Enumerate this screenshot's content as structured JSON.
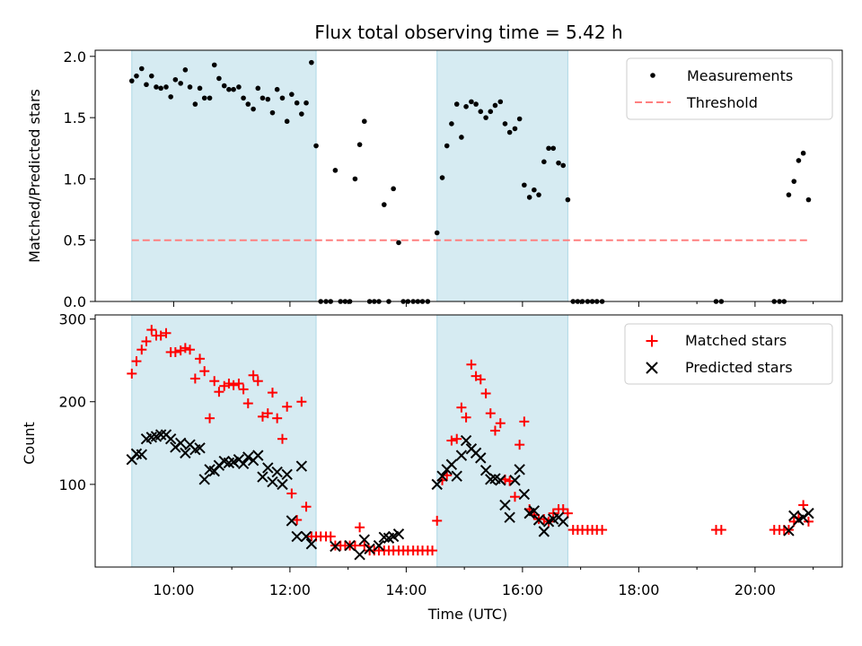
{
  "chart_data": [
    {
      "type": "scatter",
      "title": "Flux total observing time = 5.42 h",
      "xlabel": "",
      "ylabel": "Matched/Predicted stars",
      "ylim": [
        0,
        2.05
      ],
      "yticks": [
        "0.0",
        "0.5",
        "1.0",
        "1.5",
        "2.0"
      ],
      "ytick_values": [
        0,
        0.5,
        1.0,
        1.5,
        2.0
      ],
      "legend": [
        "Measurements",
        "Threshold"
      ],
      "threshold": 0.5,
      "threshold_color": "#ff7f7f",
      "threshold_range": [
        9.28,
        20.95
      ],
      "series": [
        {
          "name": "Measurements",
          "color": "#000000",
          "x": [
            9.28,
            9.36,
            9.45,
            9.53,
            9.62,
            9.7,
            9.78,
            9.87,
            9.95,
            10.03,
            10.12,
            10.2,
            10.28,
            10.37,
            10.45,
            10.53,
            10.62,
            10.7,
            10.78,
            10.87,
            10.95,
            11.03,
            11.12,
            11.2,
            11.28,
            11.37,
            11.45,
            11.53,
            11.62,
            11.7,
            11.78,
            11.87,
            11.95,
            12.03,
            12.12,
            12.2,
            12.28,
            12.37,
            12.45,
            12.53,
            12.62,
            12.7,
            12.78,
            12.87,
            12.95,
            13.03,
            13.12,
            13.2,
            13.28,
            13.37,
            13.45,
            13.53,
            13.62,
            13.7,
            13.78,
            13.87,
            13.95,
            14.03,
            14.12,
            14.2,
            14.28,
            14.37,
            14.53,
            14.62,
            14.7,
            14.78,
            14.87,
            14.95,
            15.03,
            15.12,
            15.2,
            15.28,
            15.37,
            15.45,
            15.53,
            15.62,
            15.7,
            15.78,
            15.87,
            15.95,
            16.03,
            16.12,
            16.2,
            16.28,
            16.37,
            16.45,
            16.53,
            16.62,
            16.7,
            16.78,
            16.87,
            16.95,
            17.03,
            17.12,
            17.2,
            17.28,
            17.37,
            19.33,
            19.42,
            20.33,
            20.42,
            20.5,
            20.58,
            20.67,
            20.75,
            20.83,
            20.92
          ],
          "y": [
            1.8,
            1.84,
            1.9,
            1.77,
            1.84,
            1.75,
            1.74,
            1.75,
            1.67,
            1.81,
            1.78,
            1.89,
            1.75,
            1.61,
            1.74,
            1.66,
            1.66,
            1.93,
            1.82,
            1.76,
            1.73,
            1.73,
            1.75,
            1.66,
            1.61,
            1.57,
            1.74,
            1.66,
            1.65,
            1.54,
            1.73,
            1.66,
            1.47,
            1.69,
            1.62,
            1.53,
            1.62,
            1.95,
            1.27,
            0.0,
            0.0,
            0.0,
            1.07,
            0.0,
            0.0,
            0.0,
            1.0,
            1.28,
            1.47,
            0.0,
            0.0,
            0.0,
            0.79,
            0.0,
            0.92,
            0.48,
            0.0,
            0.0,
            0.0,
            0.0,
            0.0,
            0.0,
            0.56,
            1.01,
            1.27,
            1.45,
            1.61,
            1.34,
            1.59,
            1.63,
            1.61,
            1.55,
            1.5,
            1.55,
            1.6,
            1.63,
            1.45,
            1.38,
            1.41,
            1.49,
            0.95,
            0.85,
            0.91,
            0.87,
            1.14,
            1.25,
            1.25,
            1.13,
            1.11,
            0.83,
            0.0,
            0.0,
            0.0,
            0.0,
            0.0,
            0.0,
            0.0,
            0.0,
            0.0,
            0.0,
            0.0,
            0.0,
            0.87,
            0.98,
            1.15,
            1.21,
            0.83
          ]
        }
      ]
    },
    {
      "type": "scatter",
      "title": "",
      "xlabel": "Time (UTC)",
      "ylabel": "Count",
      "ylim": [
        0,
        305
      ],
      "yticks": [
        "100",
        "200",
        "300"
      ],
      "ytick_values": [
        100,
        200,
        300
      ],
      "xlim": [
        8.65,
        21.5
      ],
      "xticks": [
        "10:00",
        "12:00",
        "14:00",
        "16:00",
        "18:00",
        "20:00"
      ],
      "xtick_values": [
        10,
        12,
        14,
        16,
        18,
        20
      ],
      "minor_xtick_values": [
        11,
        13,
        15,
        17,
        19,
        21
      ],
      "legend": [
        "Matched stars",
        "Predicted stars"
      ],
      "series": [
        {
          "name": "Matched stars",
          "marker": "plus",
          "color": "#ff0000",
          "x": [
            9.28,
            9.36,
            9.45,
            9.53,
            9.62,
            9.7,
            9.78,
            9.87,
            9.95,
            10.03,
            10.12,
            10.2,
            10.28,
            10.37,
            10.45,
            10.53,
            10.62,
            10.7,
            10.78,
            10.87,
            10.95,
            11.03,
            11.12,
            11.2,
            11.28,
            11.37,
            11.45,
            11.53,
            11.62,
            11.7,
            11.78,
            11.87,
            11.95,
            12.03,
            12.12,
            12.2,
            12.28,
            12.37,
            12.45,
            12.53,
            12.62,
            12.7,
            12.78,
            12.87,
            12.95,
            13.03,
            13.12,
            13.2,
            13.28,
            13.37,
            13.45,
            13.53,
            13.62,
            13.7,
            13.78,
            13.87,
            13.95,
            14.03,
            14.12,
            14.2,
            14.28,
            14.37,
            14.45,
            14.53,
            14.62,
            14.7,
            14.78,
            14.87,
            14.95,
            15.03,
            15.12,
            15.2,
            15.28,
            15.37,
            15.45,
            15.53,
            15.62,
            15.7,
            15.78,
            15.87,
            15.95,
            16.03,
            16.12,
            16.2,
            16.28,
            16.37,
            16.45,
            16.53,
            16.62,
            16.7,
            16.78,
            16.87,
            16.95,
            17.03,
            17.12,
            17.2,
            17.28,
            17.37,
            19.33,
            19.42,
            20.33,
            20.42,
            20.5,
            20.58,
            20.67,
            20.75,
            20.83,
            20.92
          ],
          "y": [
            234,
            249,
            263,
            273,
            287,
            280,
            280,
            283,
            260,
            260,
            262,
            265,
            263,
            228,
            252,
            237,
            180,
            225,
            212,
            219,
            222,
            220,
            222,
            215,
            198,
            232,
            225,
            182,
            186,
            211,
            180,
            155,
            194,
            89,
            57,
            200,
            73,
            37,
            37,
            37,
            37,
            37,
            26,
            26,
            26,
            26,
            26,
            48,
            26,
            20,
            20,
            20,
            20,
            20,
            20,
            20,
            20,
            20,
            20,
            20,
            20,
            20,
            20,
            56,
            105,
            111,
            153,
            155,
            193,
            181,
            245,
            231,
            227,
            210,
            186,
            165,
            174,
            106,
            104,
            85,
            148,
            176,
            70,
            63,
            58,
            58,
            55,
            65,
            70,
            70,
            65,
            45,
            45,
            45,
            45,
            45,
            45,
            45,
            45,
            45,
            45,
            45,
            45,
            45,
            55,
            60,
            75,
            55
          ]
        },
        {
          "name": "Predicted stars",
          "marker": "x",
          "color": "#000000",
          "x": [
            9.28,
            9.36,
            9.45,
            9.53,
            9.62,
            9.7,
            9.78,
            9.87,
            9.95,
            10.03,
            10.12,
            10.2,
            10.28,
            10.37,
            10.45,
            10.53,
            10.62,
            10.7,
            10.78,
            10.87,
            10.95,
            11.03,
            11.12,
            11.2,
            11.28,
            11.37,
            11.45,
            11.53,
            11.62,
            11.7,
            11.78,
            11.87,
            11.95,
            12.03,
            12.12,
            12.2,
            12.28,
            12.37,
            12.78,
            13.03,
            13.2,
            13.28,
            13.37,
            13.53,
            13.62,
            13.7,
            13.78,
            13.87,
            14.53,
            14.62,
            14.7,
            14.78,
            14.87,
            14.95,
            15.03,
            15.12,
            15.2,
            15.28,
            15.37,
            15.45,
            15.53,
            15.62,
            15.7,
            15.78,
            15.87,
            15.95,
            16.03,
            16.12,
            16.2,
            16.28,
            16.37,
            16.45,
            16.53,
            16.62,
            16.7,
            20.58,
            20.67,
            20.75,
            20.83,
            20.92
          ],
          "y": [
            130,
            137,
            136,
            155,
            157,
            158,
            160,
            160,
            155,
            145,
            150,
            138,
            148,
            142,
            144,
            106,
            118,
            116,
            123,
            128,
            126,
            127,
            130,
            125,
            133,
            129,
            135,
            109,
            120,
            103,
            115,
            100,
            112,
            56,
            37,
            122,
            37,
            28,
            25,
            26,
            15,
            33,
            22,
            26,
            36,
            35,
            37,
            40,
            100,
            110,
            118,
            124,
            110,
            135,
            153,
            143,
            138,
            132,
            117,
            106,
            107,
            105,
            75,
            60,
            105,
            118,
            88,
            65,
            68,
            57,
            43,
            55,
            58,
            60,
            55,
            44,
            62,
            57,
            60,
            65
          ]
        }
      ]
    }
  ],
  "shaded_regions": [
    [
      9.28,
      12.45
    ],
    [
      14.53,
      16.78
    ]
  ],
  "shade_color": "#add8e6"
}
